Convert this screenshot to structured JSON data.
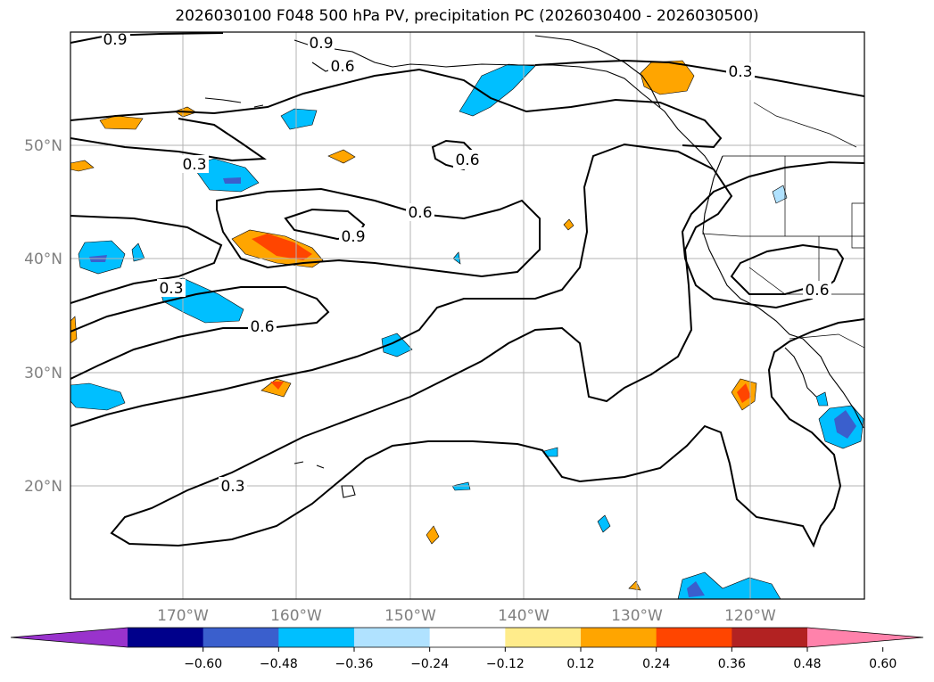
{
  "title": "2026030100 F048 500 hPa PV, precipitation PC (2026030400 - 2026030500)",
  "map": {
    "lat_labels": [
      "50°N",
      "40°N",
      "30°N",
      "20°N"
    ],
    "lon_labels": [
      "170°W",
      "160°W",
      "150°W",
      "140°W",
      "130°W",
      "120°W"
    ],
    "contour_labels": [
      "0.9",
      "0.9",
      "0.6",
      "0.3",
      "0.6",
      "0.3",
      "0.6",
      "0.9",
      "0.3",
      "0.6",
      "0.6",
      "0.3"
    ]
  },
  "colorbar": {
    "colors": [
      "#9933cc",
      "#00008b",
      "#3a5fcd",
      "#00bfff",
      "#b0e2ff",
      "#ffffff",
      "#ffec8b",
      "#ffa500",
      "#ff4500",
      "#b22222",
      "#ff82ab"
    ],
    "tick_labels": [
      "−0.60",
      "−0.48",
      "−0.36",
      "−0.24",
      "−0.12",
      "0.12",
      "0.24",
      "0.36",
      "0.48",
      "0.60"
    ]
  }
}
